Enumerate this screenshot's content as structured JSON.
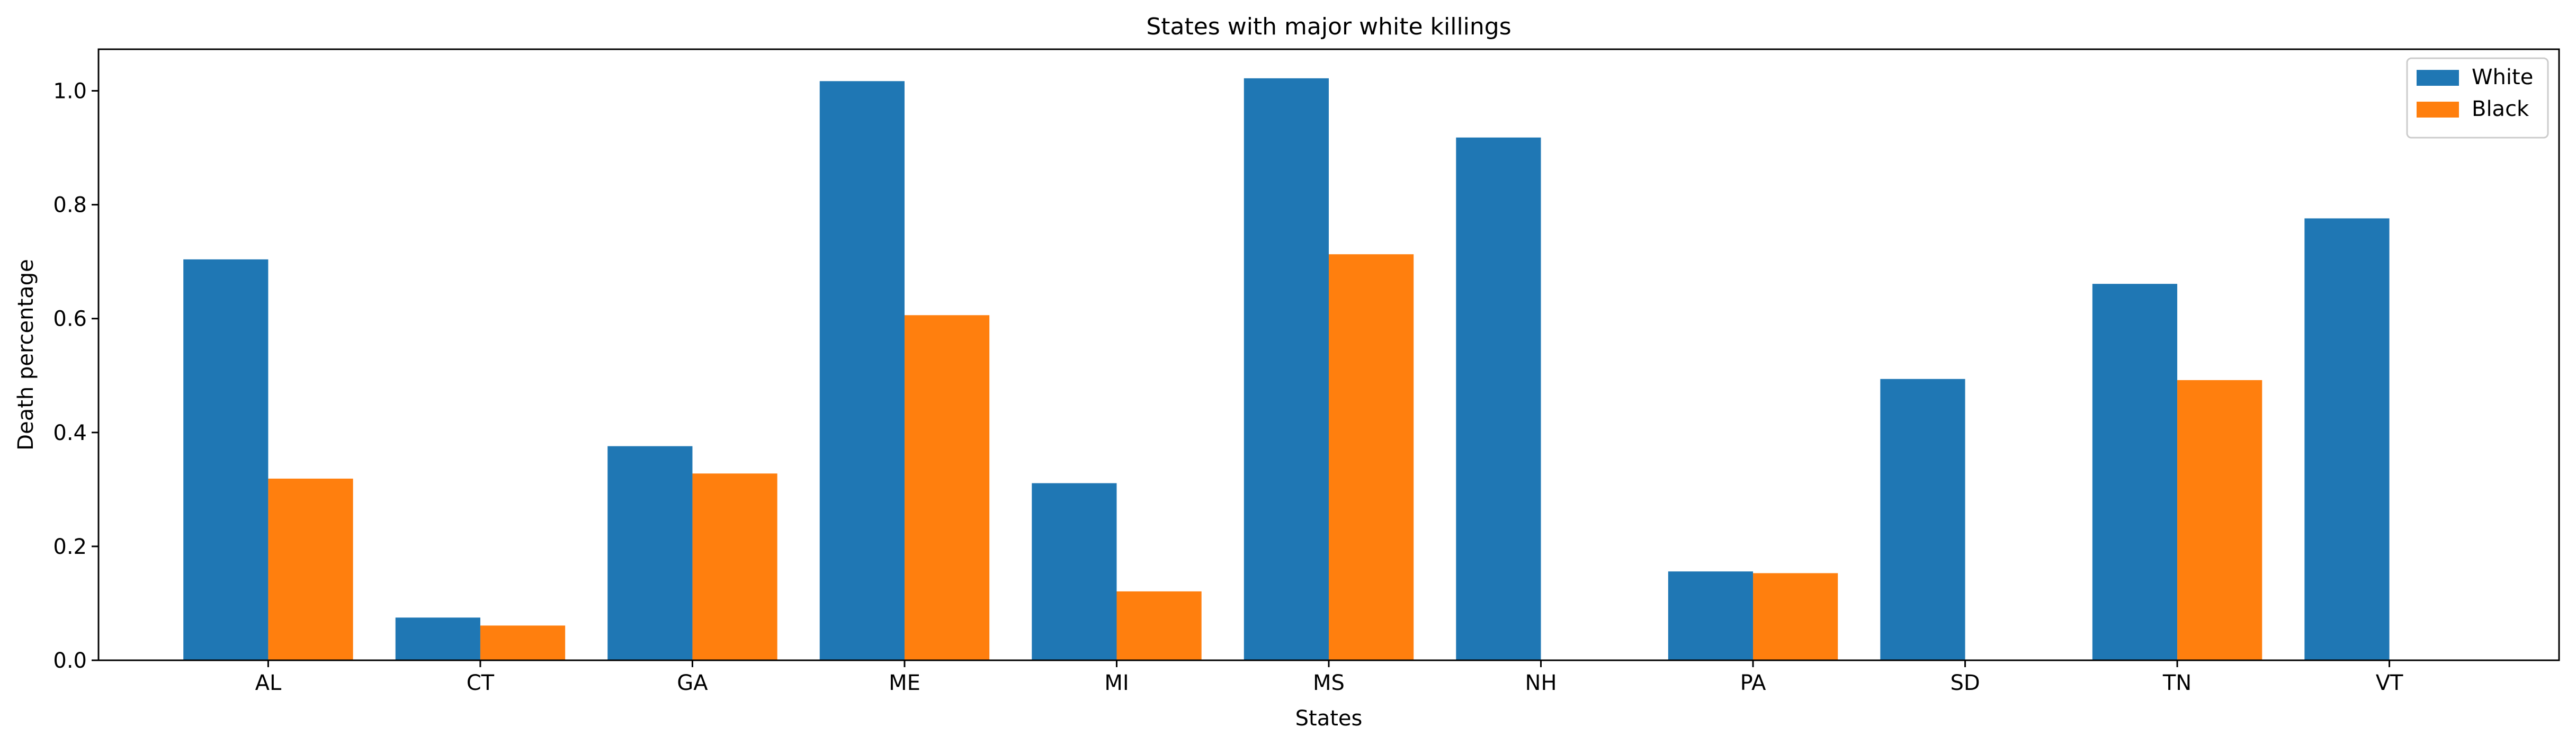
{
  "chart_data": {
    "type": "bar",
    "title": "States with major white killings",
    "xlabel": "States",
    "ylabel": "Death percentage",
    "categories": [
      "AL",
      "CT",
      "GA",
      "ME",
      "MI",
      "MS",
      "NH",
      "PA",
      "SD",
      "TN",
      "VT"
    ],
    "series": [
      {
        "name": "White",
        "color": "#1f77b4",
        "values": [
          0.704,
          0.075,
          0.376,
          1.017,
          0.311,
          1.022,
          0.918,
          0.156,
          0.494,
          0.661,
          0.776
        ]
      },
      {
        "name": "Black",
        "color": "#ff7f0e",
        "values": [
          0.319,
          0.061,
          0.328,
          0.606,
          0.121,
          0.713,
          0.0,
          0.153,
          0.0,
          0.492,
          0.0
        ]
      }
    ],
    "ylim": [
      0,
      1.073
    ],
    "yticks": [
      "0.0",
      "0.2",
      "0.4",
      "0.6",
      "0.8",
      "1.0"
    ],
    "grid": false,
    "legend_position": "top-right"
  }
}
